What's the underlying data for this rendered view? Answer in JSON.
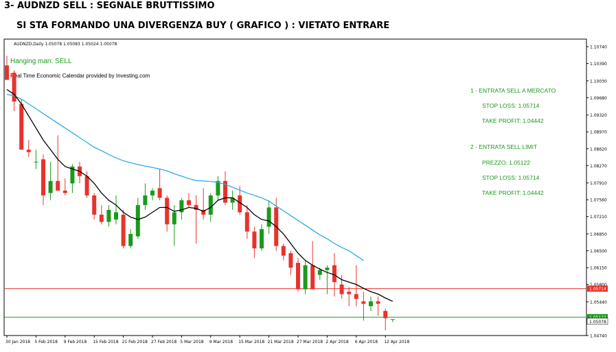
{
  "headline": {
    "line1": "3- AUDNZD SELL : SEGNALE BRUTTISSIMO",
    "line2": "SI STA FORMANDO UNA DIVERGENZA BUY ( GRAFICO ) : VIETATO ENTRARE"
  },
  "chart_info": "AUDNZD,Daily  1.05078 1.05083 1.05024 1.05078",
  "annotations": {
    "pattern": "Hanging man: SELL",
    "provider": "Real Time Economic Calendar provided by Investing.com",
    "trade_lines": [
      "1 - ENTRATA SELL A MERCATO",
      "STOP LOSS: 1.05714",
      "TAKE PROFIT: 1.04442",
      "2 - ENTRATA SELL LIMIT",
      "PREZZO: 1.05122",
      "STOP LOSS: 1.05714",
      "TAKE PROFIT: 1.04442"
    ]
  },
  "colors": {
    "bull": "#1a9a1a",
    "bear": "#e8332b",
    "ma_fast": "#000000",
    "ma_slow": "#29abe2",
    "stop_line": "#e8332b",
    "entry_line": "#1a9a1a",
    "annotation_text": "#1a9a1a"
  },
  "chart_data": {
    "type": "candlestick",
    "symbol": "AUDNZD",
    "timeframe": "Daily",
    "ylim": [
      1.0474,
      1.1074
    ],
    "y_ticks": [
      "1.10740",
      "1.10390",
      "1.10030",
      "1.09680",
      "1.09320",
      "1.08970",
      "1.08620",
      "1.08270",
      "1.07910",
      "1.07560",
      "1.07210",
      "1.06850",
      "1.06500",
      "1.06150",
      "1.05800",
      "1.05440",
      "1.05090",
      "1.04740"
    ],
    "x_tick_labels": [
      "30 Jan 2018",
      "5 Feb 2018",
      "9 Feb 2018",
      "15 Feb 2018",
      "21 Feb 2018",
      "27 Feb 2018",
      "5 Mar 2018",
      "9 Mar 2018",
      "15 Mar 2018",
      "21 Mar 2018",
      "27 Mar 2018",
      "2 Apr 2018",
      "6 Apr 2018",
      "12 Apr 2018"
    ],
    "x_tick_index": [
      0,
      4,
      8,
      12,
      16,
      20,
      24,
      28,
      32,
      36,
      40,
      44,
      48,
      52
    ],
    "candles": [
      {
        "o": 1.1035,
        "h": 1.1055,
        "l": 1.1005,
        "c": 1.1005
      },
      {
        "o": 1.102,
        "h": 1.1025,
        "l": 1.094,
        "c": 1.096
      },
      {
        "o": 1.0955,
        "h": 1.0965,
        "l": 1.086,
        "c": 1.086
      },
      {
        "o": 1.086,
        "h": 1.088,
        "l": 1.0845,
        "c": 1.0855
      },
      {
        "o": 1.0835,
        "h": 1.086,
        "l": 1.082,
        "c": 1.0835
      },
      {
        "o": 1.084,
        "h": 1.085,
        "l": 1.0745,
        "c": 1.0765
      },
      {
        "o": 1.077,
        "h": 1.0835,
        "l": 1.0755,
        "c": 1.0795
      },
      {
        "o": 1.0795,
        "h": 1.089,
        "l": 1.0775,
        "c": 1.0775
      },
      {
        "o": 1.0775,
        "h": 1.08,
        "l": 1.0765,
        "c": 1.077
      },
      {
        "o": 1.079,
        "h": 1.083,
        "l": 1.077,
        "c": 1.0825
      },
      {
        "o": 1.0825,
        "h": 1.0835,
        "l": 1.079,
        "c": 1.0805
      },
      {
        "o": 1.0805,
        "h": 1.0815,
        "l": 1.076,
        "c": 1.0765
      },
      {
        "o": 1.0765,
        "h": 1.077,
        "l": 1.0715,
        "c": 1.0725
      },
      {
        "o": 1.0725,
        "h": 1.0745,
        "l": 1.0705,
        "c": 1.071
      },
      {
        "o": 1.071,
        "h": 1.0745,
        "l": 1.07,
        "c": 1.0735
      },
      {
        "o": 1.0715,
        "h": 1.0765,
        "l": 1.0705,
        "c": 1.073
      },
      {
        "o": 1.0725,
        "h": 1.0735,
        "l": 1.0655,
        "c": 1.066
      },
      {
        "o": 1.066,
        "h": 1.0695,
        "l": 1.0655,
        "c": 1.0685
      },
      {
        "o": 1.068,
        "h": 1.076,
        "l": 1.0675,
        "c": 1.0745
      },
      {
        "o": 1.0745,
        "h": 1.079,
        "l": 1.0735,
        "c": 1.0765
      },
      {
        "o": 1.0765,
        "h": 1.078,
        "l": 1.0755,
        "c": 1.0775
      },
      {
        "o": 1.078,
        "h": 1.082,
        "l": 1.0755,
        "c": 1.076
      },
      {
        "o": 1.076,
        "h": 1.0765,
        "l": 1.069,
        "c": 1.0705
      },
      {
        "o": 1.0705,
        "h": 1.0745,
        "l": 1.066,
        "c": 1.073
      },
      {
        "o": 1.073,
        "h": 1.076,
        "l": 1.0715,
        "c": 1.0755
      },
      {
        "o": 1.0755,
        "h": 1.077,
        "l": 1.074,
        "c": 1.0745
      },
      {
        "o": 1.0745,
        "h": 1.0765,
        "l": 1.0665,
        "c": 1.0735
      },
      {
        "o": 1.0735,
        "h": 1.078,
        "l": 1.0715,
        "c": 1.0725
      },
      {
        "o": 1.0725,
        "h": 1.077,
        "l": 1.071,
        "c": 1.0765
      },
      {
        "o": 1.0765,
        "h": 1.0805,
        "l": 1.0755,
        "c": 1.0795
      },
      {
        "o": 1.0795,
        "h": 1.0815,
        "l": 1.0745,
        "c": 1.075
      },
      {
        "o": 1.075,
        "h": 1.0775,
        "l": 1.0735,
        "c": 1.076
      },
      {
        "o": 1.0765,
        "h": 1.0785,
        "l": 1.0725,
        "c": 1.073
      },
      {
        "o": 1.073,
        "h": 1.0745,
        "l": 1.0675,
        "c": 1.069
      },
      {
        "o": 1.069,
        "h": 1.07,
        "l": 1.0635,
        "c": 1.0655
      },
      {
        "o": 1.0655,
        "h": 1.0705,
        "l": 1.065,
        "c": 1.0695
      },
      {
        "o": 1.07,
        "h": 1.0755,
        "l": 1.0685,
        "c": 1.074
      },
      {
        "o": 1.074,
        "h": 1.076,
        "l": 1.065,
        "c": 1.066
      },
      {
        "o": 1.066,
        "h": 1.0665,
        "l": 1.063,
        "c": 1.064
      },
      {
        "o": 1.0645,
        "h": 1.065,
        "l": 1.06,
        "c": 1.0615
      },
      {
        "o": 1.0625,
        "h": 1.0635,
        "l": 1.0565,
        "c": 1.057
      },
      {
        "o": 1.057,
        "h": 1.063,
        "l": 1.056,
        "c": 1.062
      },
      {
        "o": 1.062,
        "h": 1.067,
        "l": 1.057,
        "c": 1.057
      },
      {
        "o": 1.06,
        "h": 1.0615,
        "l": 1.059,
        "c": 1.061
      },
      {
        "o": 1.061,
        "h": 1.062,
        "l": 1.056,
        "c": 1.0615
      },
      {
        "o": 1.062,
        "h": 1.0645,
        "l": 1.0555,
        "c": 1.0585
      },
      {
        "o": 1.058,
        "h": 1.06,
        "l": 1.055,
        "c": 1.056
      },
      {
        "o": 1.0565,
        "h": 1.0575,
        "l": 1.0535,
        "c": 1.056
      },
      {
        "o": 1.056,
        "h": 1.062,
        "l": 1.0535,
        "c": 1.055
      },
      {
        "o": 1.0545,
        "h": 1.0565,
        "l": 1.0505,
        "c": 1.054
      },
      {
        "o": 1.0535,
        "h": 1.0555,
        "l": 1.0525,
        "c": 1.0545
      },
      {
        "o": 1.0545,
        "h": 1.0555,
        "l": 1.0515,
        "c": 1.054
      },
      {
        "o": 1.0525,
        "h": 1.053,
        "l": 1.0485,
        "c": 1.051
      },
      {
        "o": 1.0508,
        "h": 1.0508,
        "l": 1.0502,
        "c": 1.0508
      }
    ],
    "ma_fast": [
      1.0985,
      1.0975,
      1.0955,
      1.093,
      1.0905,
      1.088,
      1.086,
      1.084,
      1.0825,
      1.082,
      1.0815,
      1.0805,
      1.079,
      1.077,
      1.0755,
      1.0745,
      1.073,
      1.072,
      1.0715,
      1.072,
      1.073,
      1.074,
      1.074,
      1.0732,
      1.0735,
      1.074,
      1.0738,
      1.0732,
      1.074,
      1.0755,
      1.076,
      1.076,
      1.075,
      1.074,
      1.0725,
      1.0715,
      1.0712,
      1.07,
      1.0685,
      1.0665,
      1.0645,
      1.063,
      1.062,
      1.0612,
      1.0605,
      1.06,
      1.059,
      1.0585,
      1.058,
      1.0572,
      1.0565,
      1.056,
      1.0552,
      1.0545
    ],
    "ma_slow": [
      1.0975,
      1.0972,
      1.0965,
      1.0955,
      1.0945,
      1.0935,
      1.0925,
      1.0915,
      1.0905,
      1.0895,
      1.0885,
      1.0875,
      1.0865,
      1.0858,
      1.085,
      1.0843,
      1.0837,
      1.0833,
      1.0829,
      1.0826,
      1.0823,
      1.082,
      1.0816,
      1.081,
      1.0805,
      1.08,
      1.0796,
      1.0795,
      1.0794,
      1.0792,
      1.0788,
      1.0782,
      1.0776,
      1.077,
      1.0765,
      1.076,
      1.0753,
      1.0743,
      1.0733,
      1.0723,
      1.0713,
      1.0703,
      1.0693,
      1.0683,
      1.0675,
      1.0665,
      1.0657,
      1.065,
      1.064,
      1.063
    ],
    "hlines": [
      {
        "name": "stop-loss",
        "value": 1.05714,
        "label": "1.05714",
        "color": "#e8332b"
      },
      {
        "name": "entry-limit",
        "value": 1.05122,
        "label": "1.05122",
        "color": "#1a9a1a"
      }
    ],
    "price_tags": [
      {
        "name": "bid-tag",
        "value": 1.05078,
        "label": "1.05078",
        "color": "#000000"
      }
    ]
  }
}
